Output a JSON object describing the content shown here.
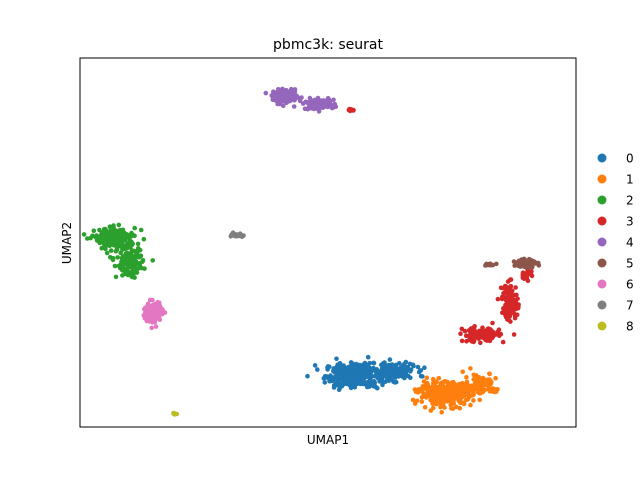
{
  "chart_data": {
    "type": "scatter",
    "title": "pbmc3k: seurat",
    "xlabel": "UMAP1",
    "ylabel": "UMAP2",
    "grid": false,
    "legend_position": "right",
    "ticks_shown": false,
    "xlim": [
      -8,
      13
    ],
    "ylim": [
      -8,
      12
    ],
    "series": [
      {
        "name": "0",
        "color": "#1f77b4",
        "clusters": [
          {
            "center": [
              3.6,
              -5.2
            ],
            "spread": [
              1.1,
              0.6
            ],
            "count": 330
          },
          {
            "center": [
              5.3,
              -5.0
            ],
            "spread": [
              0.8,
              0.4
            ],
            "count": 170
          }
        ]
      },
      {
        "name": "1",
        "color": "#ff7f0e",
        "clusters": [
          {
            "center": [
              7.5,
              -6.2
            ],
            "spread": [
              1.0,
              0.55
            ],
            "count": 380
          },
          {
            "center": [
              8.9,
              -5.6
            ],
            "spread": [
              0.6,
              0.5
            ],
            "count": 80
          },
          {
            "center": [
              9.5,
              -6.0
            ],
            "spread": [
              0.35,
              0.12
            ],
            "count": 15
          }
        ]
      },
      {
        "name": "2",
        "color": "#2ca02c",
        "clusters": [
          {
            "center": [
              -6.5,
              2.2
            ],
            "spread": [
              0.8,
              0.5
            ],
            "count": 200
          },
          {
            "center": [
              -5.9,
              0.9
            ],
            "spread": [
              0.5,
              0.7
            ],
            "count": 140
          }
        ]
      },
      {
        "name": "3",
        "color": "#d62728",
        "clusters": [
          {
            "center": [
              9.0,
              -3.0
            ],
            "spread": [
              0.7,
              0.35
            ],
            "count": 140
          },
          {
            "center": [
              10.2,
              -1.2
            ],
            "spread": [
              0.3,
              0.9
            ],
            "count": 120
          },
          {
            "center": [
              10.9,
              0.3
            ],
            "spread": [
              0.2,
              0.35
            ],
            "count": 30
          },
          {
            "center": [
              3.5,
              9.2
            ],
            "spread": [
              0.12,
              0.08
            ],
            "count": 7
          }
        ]
      },
      {
        "name": "4",
        "color": "#9467bd",
        "clusters": [
          {
            "center": [
              0.7,
              9.9
            ],
            "spread": [
              0.5,
              0.3
            ],
            "count": 150
          },
          {
            "center": [
              2.1,
              9.5
            ],
            "spread": [
              0.6,
              0.25
            ],
            "count": 110
          }
        ]
      },
      {
        "name": "5",
        "color": "#8c564b",
        "clusters": [
          {
            "center": [
              10.9,
              0.9
            ],
            "spread": [
              0.35,
              0.22
            ],
            "count": 110
          },
          {
            "center": [
              9.3,
              0.8
            ],
            "spread": [
              0.18,
              0.06
            ],
            "count": 14
          }
        ]
      },
      {
        "name": "6",
        "color": "#e377c2",
        "clusters": [
          {
            "center": [
              -4.9,
              -1.8
            ],
            "spread": [
              0.35,
              0.55
            ],
            "count": 130
          }
        ]
      },
      {
        "name": "7",
        "color": "#7f7f7f",
        "clusters": [
          {
            "center": [
              -1.3,
              2.4
            ],
            "spread": [
              0.25,
              0.08
            ],
            "count": 24
          }
        ]
      },
      {
        "name": "8",
        "color": "#bcbd22",
        "clusters": [
          {
            "center": [
              -4.0,
              -7.3
            ],
            "spread": [
              0.07,
              0.04
            ],
            "count": 8
          }
        ]
      }
    ]
  }
}
